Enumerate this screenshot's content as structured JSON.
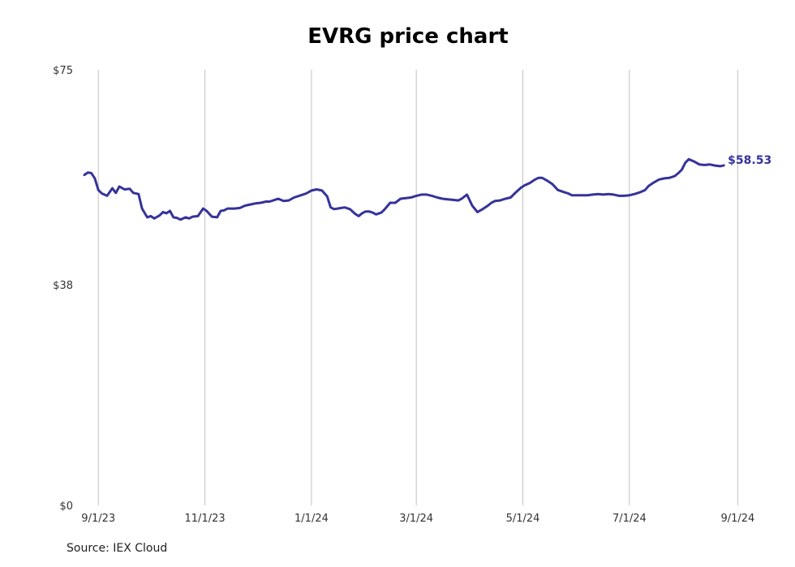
{
  "chart_data": {
    "type": "line",
    "title": "EVRG price chart",
    "xlabel": "",
    "ylabel": "",
    "y_ticks": [
      "$0",
      "$38",
      "$75"
    ],
    "ylim": [
      0,
      75
    ],
    "x_ticks": [
      "9/1/23",
      "11/1/23",
      "1/1/24",
      "3/1/24",
      "5/1/24",
      "7/1/24",
      "9/1/24"
    ],
    "x_tick_dates": [
      "2023-09-01",
      "2023-11-01",
      "2024-01-01",
      "2024-03-01",
      "2024-05-01",
      "2024-07-01",
      "2024-09-01"
    ],
    "xlim": [
      "2023-08-24",
      "2024-09-05"
    ],
    "grid": "vertical",
    "line_color": "#35339a",
    "last_value_label": "$58.53",
    "series": [
      {
        "x": [
          "2023-08-24",
          "2023-08-26",
          "2023-08-28",
          "2023-08-30",
          "2023-09-01",
          "2023-09-03",
          "2023-09-06",
          "2023-09-09",
          "2023-09-11",
          "2023-09-13",
          "2023-09-16",
          "2023-09-19",
          "2023-09-21",
          "2023-09-24",
          "2023-09-26",
          "2023-09-29",
          "2023-10-01",
          "2023-10-03",
          "2023-10-06",
          "2023-10-08",
          "2023-10-10",
          "2023-10-12",
          "2023-10-14",
          "2023-10-16",
          "2023-10-18",
          "2023-10-21",
          "2023-10-23",
          "2023-10-25",
          "2023-10-28",
          "2023-10-31",
          "2023-11-02",
          "2023-11-05",
          "2023-11-08",
          "2023-11-10",
          "2023-11-12",
          "2023-11-14",
          "2023-11-16",
          "2023-11-18",
          "2023-11-21",
          "2023-11-24",
          "2023-11-27",
          "2023-11-30",
          "2023-12-03",
          "2023-12-06",
          "2023-12-08",
          "2023-12-11",
          "2023-12-13",
          "2023-12-16",
          "2023-12-19",
          "2023-12-22",
          "2023-12-26",
          "2023-12-29",
          "2024-01-01",
          "2024-01-04",
          "2024-01-07",
          "2024-01-10",
          "2024-01-12",
          "2024-01-14",
          "2024-01-16",
          "2024-01-18",
          "2024-01-20",
          "2024-01-23",
          "2024-01-26",
          "2024-01-28",
          "2024-01-30",
          "2024-02-01",
          "2024-02-03",
          "2024-02-05",
          "2024-02-07",
          "2024-02-10",
          "2024-02-12",
          "2024-02-15",
          "2024-02-18",
          "2024-02-21",
          "2024-02-24",
          "2024-02-27",
          "2024-03-01",
          "2024-03-04",
          "2024-03-07",
          "2024-03-10",
          "2024-03-13",
          "2024-03-16",
          "2024-03-19",
          "2024-03-22",
          "2024-03-25",
          "2024-03-27",
          "2024-03-30",
          "2024-04-02",
          "2024-04-05",
          "2024-04-08",
          "2024-04-11",
          "2024-04-13",
          "2024-04-15",
          "2024-04-18",
          "2024-04-21",
          "2024-04-24",
          "2024-04-27",
          "2024-04-30",
          "2024-05-02",
          "2024-05-05",
          "2024-05-08",
          "2024-05-10",
          "2024-05-12",
          "2024-05-15",
          "2024-05-18",
          "2024-05-21",
          "2024-05-24",
          "2024-05-27",
          "2024-05-29",
          "2024-06-01",
          "2024-06-04",
          "2024-06-07",
          "2024-06-10",
          "2024-06-13",
          "2024-06-16",
          "2024-06-19",
          "2024-06-22",
          "2024-06-25",
          "2024-06-28",
          "2024-07-01",
          "2024-07-04",
          "2024-07-07",
          "2024-07-10",
          "2024-07-12",
          "2024-07-15",
          "2024-07-18",
          "2024-07-21",
          "2024-07-24",
          "2024-07-27",
          "2024-07-29",
          "2024-07-31",
          "2024-08-02",
          "2024-08-04",
          "2024-08-07",
          "2024-08-10",
          "2024-08-13",
          "2024-08-16",
          "2024-08-19",
          "2024-08-22",
          "2024-08-24"
        ],
        "y": [
          56.9,
          57.3,
          57.2,
          56.3,
          54.3,
          53.7,
          53.3,
          54.6,
          53.8,
          54.9,
          54.4,
          54.5,
          53.8,
          53.6,
          51.1,
          49.6,
          49.8,
          49.4,
          49.9,
          50.5,
          50.3,
          50.7,
          49.6,
          49.5,
          49.2,
          49.6,
          49.4,
          49.7,
          49.8,
          51.1,
          50.7,
          49.7,
          49.6,
          50.7,
          50.8,
          51.1,
          51.1,
          51.1,
          51.2,
          51.6,
          51.8,
          52.0,
          52.1,
          52.3,
          52.3,
          52.6,
          52.8,
          52.4,
          52.5,
          53.0,
          53.4,
          53.7,
          54.2,
          54.4,
          54.2,
          53.2,
          51.3,
          51.0,
          51.1,
          51.2,
          51.3,
          51.0,
          50.2,
          49.8,
          50.3,
          50.6,
          50.6,
          50.4,
          50.1,
          50.4,
          51.0,
          52.1,
          52.1,
          52.8,
          52.9,
          53.0,
          53.3,
          53.5,
          53.5,
          53.3,
          53.0,
          52.8,
          52.7,
          52.6,
          52.5,
          52.8,
          53.5,
          51.6,
          50.5,
          51.0,
          51.6,
          52.1,
          52.4,
          52.5,
          52.8,
          53.0,
          53.9,
          54.7,
          55.1,
          55.5,
          56.1,
          56.4,
          56.4,
          55.9,
          55.3,
          54.3,
          54.0,
          53.7,
          53.4,
          53.4,
          53.4,
          53.4,
          53.5,
          53.6,
          53.5,
          53.6,
          53.5,
          53.3,
          53.3,
          53.4,
          53.6,
          53.9,
          54.3,
          55.0,
          55.6,
          56.1,
          56.3,
          56.4,
          56.7,
          57.2,
          57.8,
          59.0,
          59.6,
          59.2,
          58.7,
          58.6,
          58.7,
          58.5,
          58.4,
          58.53
        ]
      }
    ]
  },
  "source": "Source: IEX Cloud"
}
